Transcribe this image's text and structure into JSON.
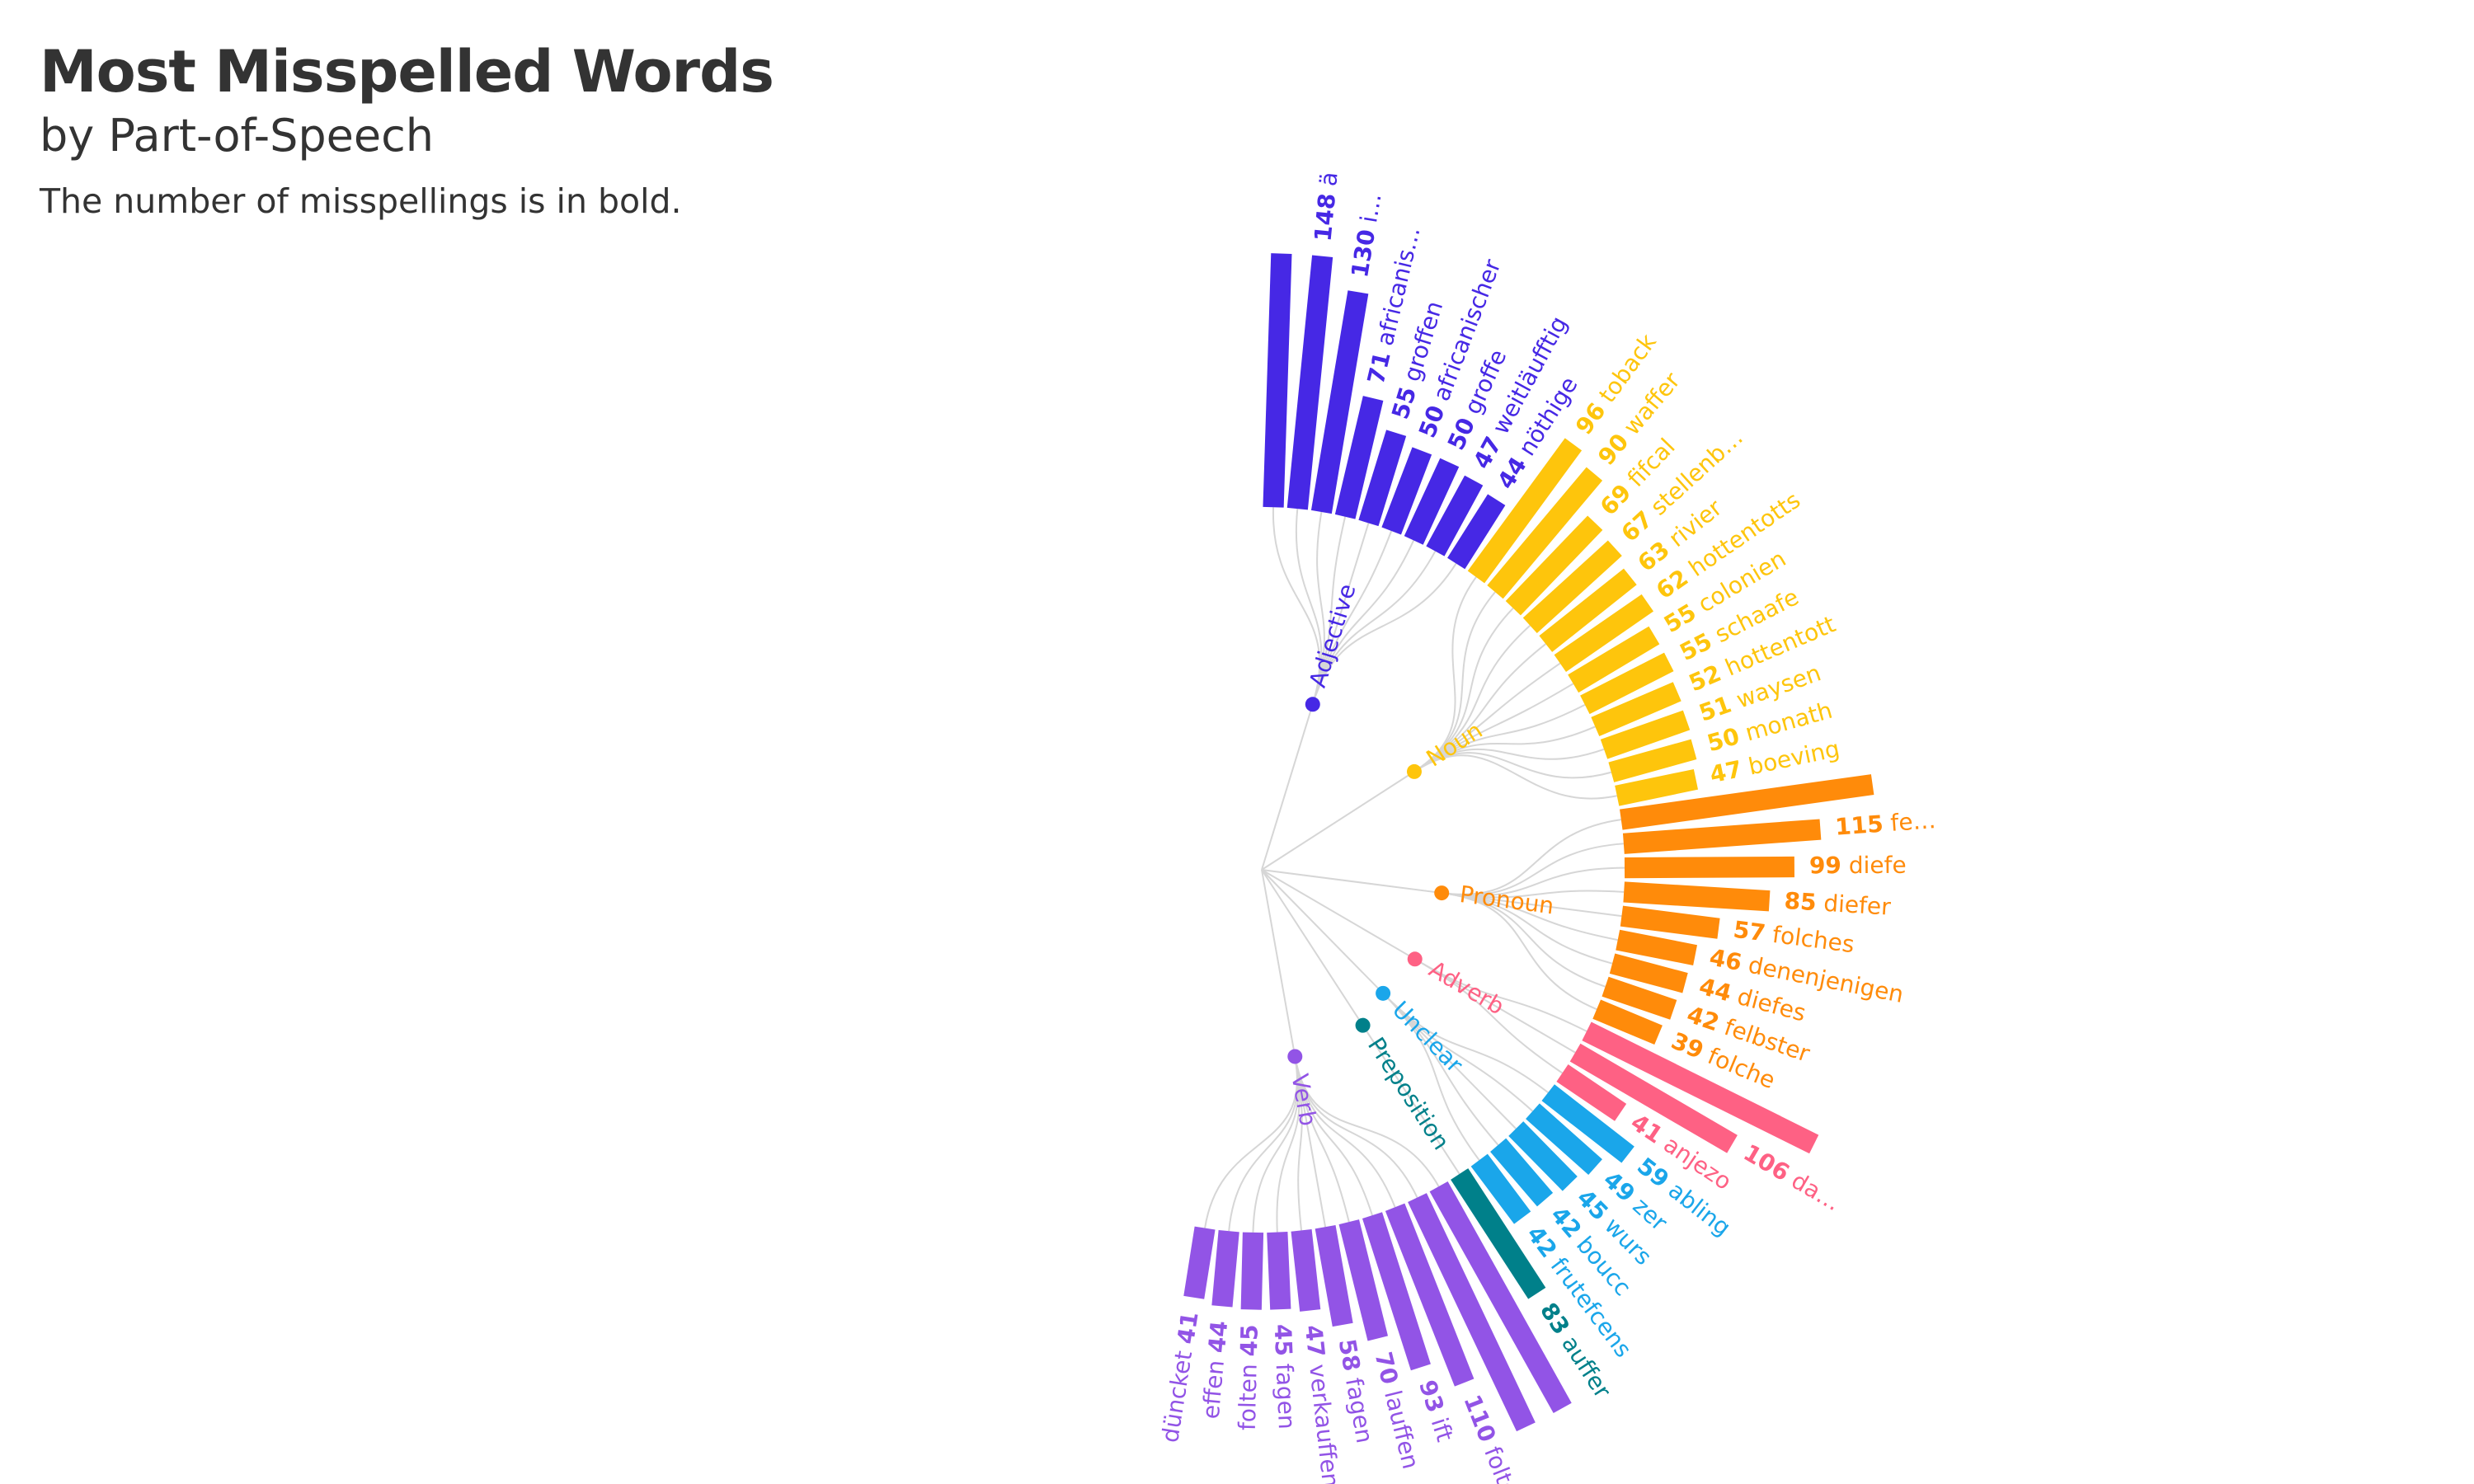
{
  "title": "Most Misspelled Words",
  "subtitle": "by Part-of-Speech",
  "caption": "The number of misspellings is in bold.",
  "chart_data": {
    "type": "radial-bar",
    "title": "Most Misspelled Words",
    "subtitle": "by Part-of-Speech",
    "colors": {
      "Adjective": "#4628e5",
      "Noun": "#fec50c",
      "Pronoun": "#ff8b0a",
      "Adverb": "#fe6184",
      "Unclear": "#1aa6ea",
      "Preposition": "#00808a",
      "Verb": "#9254e6",
      "link": "#d6d6d6"
    },
    "groups": [
      {
        "name": "Adjective",
        "items": [
          {
            "word": "",
            "count": null
          },
          {
            "word": "ä",
            "count": 148
          },
          {
            "word": "i…",
            "count": 130
          },
          {
            "word": "africanis…",
            "count": 71
          },
          {
            "word": "groffen",
            "count": 55
          },
          {
            "word": "africanischer",
            "count": 50
          },
          {
            "word": "groffe",
            "count": 50
          },
          {
            "word": "weitläufftig",
            "count": 47
          },
          {
            "word": "nöthige",
            "count": 44
          }
        ]
      },
      {
        "name": "Noun",
        "items": [
          {
            "word": "toback",
            "count": 96
          },
          {
            "word": "waffer",
            "count": 90
          },
          {
            "word": "fifcal",
            "count": 69
          },
          {
            "word": "stellenb…",
            "count": 67
          },
          {
            "word": "rivier",
            "count": 63
          },
          {
            "word": "hottentotts",
            "count": 62
          },
          {
            "word": "colonien",
            "count": 55
          },
          {
            "word": "schaafe",
            "count": 55
          },
          {
            "word": "hottentott",
            "count": 52
          },
          {
            "word": "waysen",
            "count": 51
          },
          {
            "word": "monath",
            "count": 50
          },
          {
            "word": "boeving",
            "count": 47
          }
        ]
      },
      {
        "name": "Pronoun",
        "items": [
          {
            "word": "",
            "count": null
          },
          {
            "word": "fe…",
            "count": 115
          },
          {
            "word": "diefe",
            "count": 99
          },
          {
            "word": "diefer",
            "count": 85
          },
          {
            "word": "folches",
            "count": 57
          },
          {
            "word": "denenjenigen",
            "count": 46
          },
          {
            "word": "diefes",
            "count": 44
          },
          {
            "word": "felbster",
            "count": 42
          },
          {
            "word": "folche",
            "count": 39
          }
        ]
      },
      {
        "name": "Adverb",
        "items": [
          {
            "word": "",
            "count": null
          },
          {
            "word": "da…",
            "count": 106
          },
          {
            "word": "anjezo",
            "count": 41
          }
        ]
      },
      {
        "name": "Unclear",
        "items": [
          {
            "word": "abling",
            "count": 59
          },
          {
            "word": "zer",
            "count": 49
          },
          {
            "word": "wurs",
            "count": 45
          },
          {
            "word": "boucc",
            "count": 42
          },
          {
            "word": "frutefcens",
            "count": 42
          }
        ]
      },
      {
        "name": "Preposition",
        "items": [
          {
            "word": "auffer",
            "count": 83
          }
        ]
      },
      {
        "name": "Verb",
        "items": [
          {
            "word": "",
            "count": null
          },
          {
            "word": "",
            "count": null
          },
          {
            "word": "folte",
            "count": 110
          },
          {
            "word": "ift",
            "count": 93
          },
          {
            "word": "lauffen",
            "count": 70
          },
          {
            "word": "fagen",
            "count": 58
          },
          {
            "word": "verkauffen",
            "count": 47
          },
          {
            "word": "fagen",
            "count": 45
          },
          {
            "word": "folten",
            "count": 45
          },
          {
            "word": "effen",
            "count": 44
          },
          {
            "word": "düncket",
            "count": 41
          }
        ]
      }
    ]
  }
}
